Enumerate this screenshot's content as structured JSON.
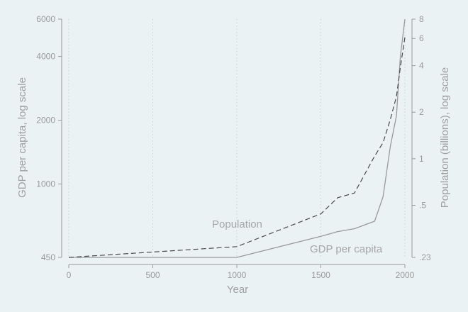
{
  "chart_data": {
    "type": "line",
    "title": "",
    "xlabel": "Year",
    "ylabel": "GDP per capita, log scale",
    "ylabel_right": "Population (billions), log scale",
    "xlim": [
      0,
      2000
    ],
    "ylim": [
      450,
      6000
    ],
    "ylim_right": [
      0.23,
      8
    ],
    "y_scale": "log",
    "y_right_scale": "log",
    "grid": "vertical dotted",
    "x_ticks": [
      0,
      500,
      1000,
      1500,
      2000
    ],
    "x_tick_labels": [
      "0",
      "500",
      "1000",
      "1500",
      "2000"
    ],
    "y_ticks": [
      450,
      1000,
      2000,
      4000,
      6000
    ],
    "y_tick_labels": [
      "450",
      "1000",
      "2000",
      "4000",
      "6000"
    ],
    "y_right_ticks": [
      0.23,
      0.5,
      1,
      2,
      4,
      6,
      8
    ],
    "y_right_tick_labels": [
      ".23",
      ".5",
      "1",
      "2",
      "4",
      "6",
      "8"
    ],
    "series": [
      {
        "name": "GDP per capita",
        "axis": "left",
        "style": "solid",
        "color": "#9a9a9a",
        "x": [
          0,
          1000,
          1500,
          1600,
          1700,
          1820,
          1870,
          1913,
          1950,
          1973,
          2000
        ],
        "y": [
          450,
          450,
          566,
          596,
          615,
          667,
          870,
          1500,
          2100,
          4000,
          6000
        ]
      },
      {
        "name": "Population",
        "axis": "right",
        "style": "dashed",
        "color": "#4a4a4a",
        "x": [
          0,
          1000,
          1500,
          1600,
          1700,
          1820,
          1870,
          1913,
          1950,
          1973,
          2000
        ],
        "y": [
          0.23,
          0.27,
          0.44,
          0.56,
          0.6,
          1.04,
          1.27,
          1.79,
          2.53,
          3.9,
          6.1
        ]
      }
    ],
    "annotations": [
      "Population",
      "GDP per capita"
    ]
  }
}
